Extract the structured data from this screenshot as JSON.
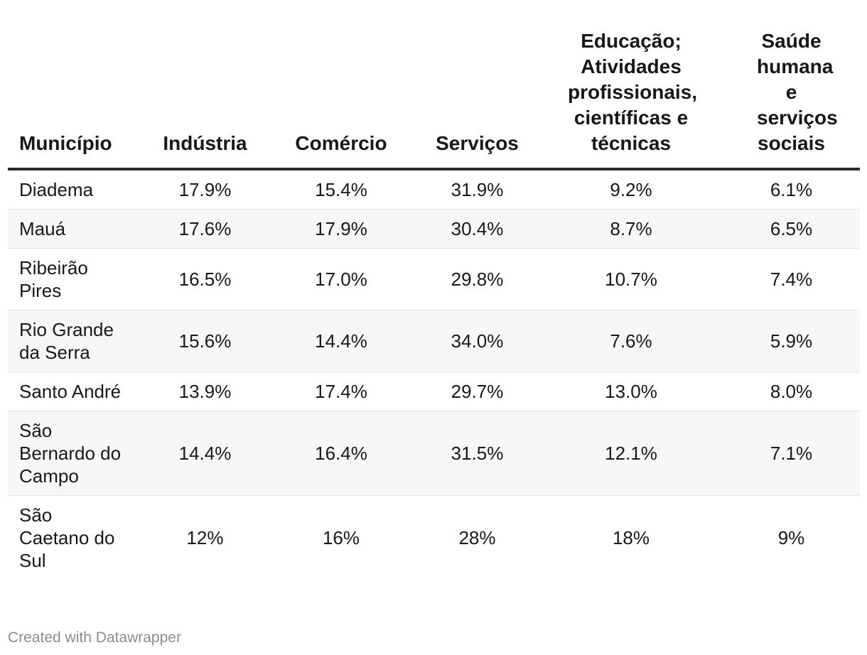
{
  "chart_data": {
    "type": "table",
    "headers": [
      "Município",
      "Indústria",
      "Comércio",
      "Serviços",
      "Educação; Atividades profissionais, científicas e técnicas",
      "Saúde humana e serviços sociais"
    ],
    "rows": [
      [
        "Diadema",
        "17.9%",
        "15.4%",
        "31.9%",
        "9.2%",
        "6.1%"
      ],
      [
        "Mauá",
        "17.6%",
        "17.9%",
        "30.4%",
        "8.7%",
        "6.5%"
      ],
      [
        "Ribeirão Pires",
        "16.5%",
        "17.0%",
        "29.8%",
        "10.7%",
        "7.4%"
      ],
      [
        "Rio Grande da Serra",
        "15.6%",
        "14.4%",
        "34.0%",
        "7.6%",
        "5.9%"
      ],
      [
        "Santo André",
        "13.9%",
        "17.4%",
        "29.7%",
        "13.0%",
        "8.0%"
      ],
      [
        "São Bernardo do Campo",
        "14.4%",
        "16.4%",
        "31.5%",
        "12.1%",
        "7.1%"
      ],
      [
        "São Caetano do Sul",
        "12%",
        "16%",
        "28%",
        "18%",
        "9%"
      ]
    ]
  },
  "footer": {
    "credit": "Created with Datawrapper"
  }
}
